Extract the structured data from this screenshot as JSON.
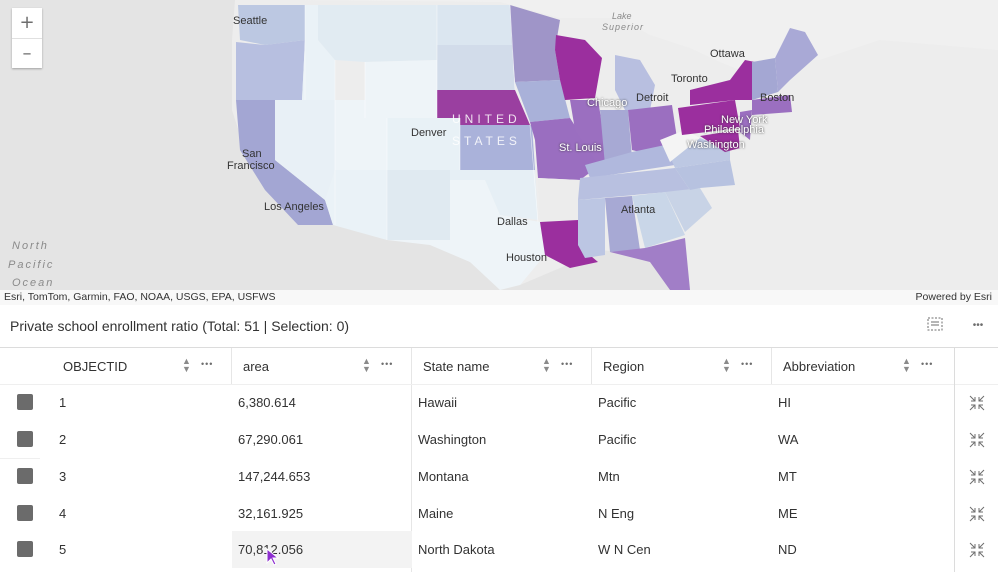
{
  "map": {
    "zoom_in": "+",
    "zoom_out": "–",
    "attribution": "Esri, TomTom, Garmin, FAO, NOAA, USGS, EPA, USFWS",
    "powered_by": "Powered by Esri",
    "labels": {
      "seattle": "Seattle",
      "lake_superior_1": "Lake",
      "lake_superior_2": "Superior",
      "ottawa": "Ottawa",
      "toronto": "Toronto",
      "united": "UNITED",
      "states": "STATES",
      "chicago": "Chicago",
      "detroit": "Detroit",
      "boston": "Boston",
      "denver": "Denver",
      "new_york": "New York",
      "philadelphia": "Philadelphia",
      "san_1": "San",
      "san_2": "Francisco",
      "st_louis": "St. Louis",
      "washington": "Washington",
      "los_angeles": "Los Angeles",
      "atlanta": "Atlanta",
      "dallas": "Dallas",
      "houston": "Houston",
      "ocean_1": "North",
      "ocean_2": "Pacific",
      "ocean_3": "Ocean"
    },
    "colors": {
      "low": "#e8f1f6",
      "light": "#c8d3e6",
      "mid": "#a7a9d4",
      "high": "#9b6fc0",
      "max": "#9b2f9e"
    }
  },
  "table": {
    "title": "Private school enrollment ratio (Total: 51 | Selection: 0)",
    "more": "•••",
    "columns": [
      {
        "label": "OBJECTID"
      },
      {
        "label": "area"
      },
      {
        "label": "State name"
      },
      {
        "label": "Region"
      },
      {
        "label": "Abbreviation"
      }
    ],
    "col_menu": "•••",
    "rows": [
      {
        "objectid": "1",
        "area": "6,380.614",
        "state": "Hawaii",
        "region": "Pacific",
        "abbr": "HI"
      },
      {
        "objectid": "2",
        "area": "67,290.061",
        "state": "Washington",
        "region": "Pacific",
        "abbr": "WA"
      },
      {
        "objectid": "3",
        "area": "147,244.653",
        "state": "Montana",
        "region": "Mtn",
        "abbr": "MT"
      },
      {
        "objectid": "4",
        "area": "32,161.925",
        "state": "Maine",
        "region": "N Eng",
        "abbr": "ME"
      },
      {
        "objectid": "5",
        "area": "70,812.056",
        "state": "North Dakota",
        "region": "W N Cen",
        "abbr": "ND"
      }
    ]
  }
}
